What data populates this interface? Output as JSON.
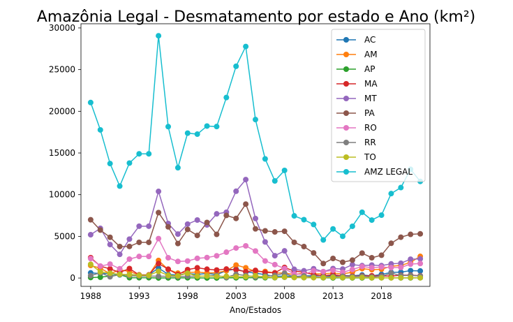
{
  "chart_data": {
    "type": "line",
    "title": "Amazônia Legal - Desmatamento por estado e Ano (km²)",
    "xlabel": "Ano/Estados",
    "ylabel": "",
    "x": [
      1988,
      1989,
      1990,
      1991,
      1992,
      1993,
      1994,
      1995,
      1996,
      1997,
      1998,
      1999,
      2000,
      2001,
      2002,
      2003,
      2004,
      2005,
      2006,
      2007,
      2008,
      2009,
      2010,
      2011,
      2012,
      2013,
      2014,
      2015,
      2016,
      2017,
      2018,
      2019,
      2020,
      2021,
      2022
    ],
    "xticks": [
      1988,
      1993,
      1998,
      2003,
      2008,
      2013,
      2018
    ],
    "xlim": [
      1987.0,
      2023.0
    ],
    "yticks": [
      0,
      5000,
      10000,
      15000,
      20000,
      25000,
      30000
    ],
    "ylim": [
      -1000,
      30500
    ],
    "grid": false,
    "legend_position": "top-right",
    "series": [
      {
        "name": "AC",
        "color": "#1f77b4",
        "values": [
          620,
          540,
          550,
          380,
          400,
          370,
          370,
          1210,
          430,
          360,
          540,
          440,
          550,
          420,
          880,
          1080,
          730,
          590,
          400,
          180,
          250,
          170,
          260,
          280,
          310,
          220,
          310,
          260,
          370,
          260,
          440,
          680,
          710,
          890,
          850
        ]
      },
      {
        "name": "AM",
        "color": "#ff7f0e",
        "values": [
          1510,
          1180,
          520,
          980,
          800,
          370,
          370,
          2110,
          1020,
          590,
          670,
          720,
          610,
          630,
          880,
          1560,
          1230,
          780,
          790,
          610,
          600,
          410,
          600,
          500,
          520,
          580,
          500,
          710,
          1130,
          1000,
          1050,
          1420,
          1510,
          1880,
          2600
        ]
      },
      {
        "name": "AP",
        "color": "#2ca02c",
        "values": [
          60,
          100,
          250,
          410,
          40,
          40,
          40,
          10,
          20,
          20,
          30,
          20,
          10,
          10,
          40,
          30,
          40,
          40,
          40,
          40,
          100,
          70,
          50,
          70,
          30,
          20,
          30,
          20,
          20,
          20,
          30,
          30,
          20,
          20,
          30
        ]
      },
      {
        "name": "MA",
        "color": "#d62728",
        "values": [
          2450,
          1420,
          1100,
          670,
          1140,
          370,
          370,
          1740,
          1060,
          410,
          1010,
          1230,
          1060,
          960,
          1080,
          990,
          760,
          920,
          670,
          630,
          1270,
          830,
          710,
          400,
          270,
          400,
          260,
          210,
          260,
          270,
          250,
          240,
          340,
          350,
          280
        ]
      },
      {
        "name": "MT",
        "color": "#9467bd",
        "values": [
          5200,
          5960,
          4020,
          2840,
          4670,
          6220,
          6220,
          10390,
          6540,
          5270,
          6470,
          6960,
          6370,
          7700,
          7890,
          10410,
          11810,
          7140,
          4330,
          2680,
          3260,
          1050,
          870,
          1120,
          760,
          1140,
          1080,
          1600,
          1490,
          1560,
          1490,
          1700,
          1780,
          2260,
          2300
        ]
      },
      {
        "name": "PA",
        "color": "#8c564b",
        "values": [
          6990,
          5750,
          4890,
          3780,
          3790,
          4280,
          4280,
          7850,
          6140,
          4140,
          5830,
          5110,
          6670,
          5240,
          7510,
          7150,
          8870,
          5900,
          5660,
          5530,
          5610,
          4280,
          3770,
          3010,
          1740,
          2350,
          1890,
          2150,
          2990,
          2430,
          2740,
          4170,
          4900,
          5240,
          5300
        ]
      },
      {
        "name": "RO",
        "color": "#e377c2",
        "values": [
          2340,
          1430,
          1670,
          1110,
          2270,
          2590,
          2590,
          4730,
          2430,
          1990,
          2040,
          2360,
          2460,
          2670,
          3100,
          3600,
          3860,
          3240,
          2050,
          1610,
          1140,
          480,
          440,
          870,
          770,
          930,
          680,
          1030,
          1380,
          1240,
          1320,
          1250,
          1270,
          1670,
          1740
        ]
      },
      {
        "name": "RR",
        "color": "#7f7f7f",
        "values": [
          290,
          630,
          150,
          420,
          280,
          240,
          240,
          220,
          210,
          180,
          220,
          220,
          250,
          310,
          80,
          440,
          310,
          130,
          230,
          310,
          570,
          120,
          260,
          140,
          120,
          170,
          210,
          160,
          210,
          130,
          200,
          590,
          300,
          320,
          250
        ]
      },
      {
        "name": "TO",
        "color": "#bcbd22",
        "values": [
          1650,
          730,
          580,
          440,
          410,
          330,
          330,
          800,
          320,
          270,
          580,
          220,
          240,
          190,
          210,
          160,
          160,
          270,
          120,
          60,
          110,
          60,
          50,
          40,
          50,
          80,
          50,
          50,
          60,
          30,
          30,
          20,
          30,
          40,
          30
        ]
      },
      {
        "name": "AMZ LEGAL",
        "color": "#17becf",
        "values": [
          21050,
          17770,
          13730,
          11030,
          13790,
          14900,
          14900,
          29060,
          18160,
          13230,
          17380,
          17260,
          18230,
          18170,
          21650,
          25400,
          27770,
          19010,
          14290,
          11650,
          12910,
          7460,
          7000,
          6420,
          4570,
          5890,
          5010,
          6210,
          7890,
          6950,
          7540,
          10130,
          10850,
          13040,
          11590
        ]
      }
    ]
  }
}
